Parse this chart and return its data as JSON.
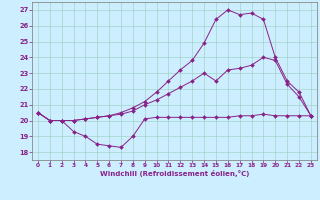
{
  "xlabel": "Windchill (Refroidissement éolien,°C)",
  "background_color": "#cceeff",
  "grid_color": "#99ccbb",
  "line_color": "#882288",
  "xlim": [
    -0.5,
    23.5
  ],
  "ylim": [
    17.5,
    27.5
  ],
  "xticks": [
    0,
    1,
    2,
    3,
    4,
    5,
    6,
    7,
    8,
    9,
    10,
    11,
    12,
    13,
    14,
    15,
    16,
    17,
    18,
    19,
    20,
    21,
    22,
    23
  ],
  "yticks": [
    18,
    19,
    20,
    21,
    22,
    23,
    24,
    25,
    26,
    27
  ],
  "line1_x": [
    0,
    1,
    2,
    3,
    4,
    5,
    6,
    7,
    8,
    9,
    10,
    11,
    12,
    13,
    14,
    15,
    16,
    17,
    18,
    19,
    20,
    21,
    22,
    23
  ],
  "line1_y": [
    20.5,
    20.0,
    20.0,
    19.3,
    19.0,
    18.5,
    18.4,
    18.3,
    19.0,
    20.1,
    20.2,
    20.2,
    20.2,
    20.2,
    20.2,
    20.2,
    20.2,
    20.3,
    20.3,
    20.4,
    20.3,
    20.3,
    20.3,
    20.3
  ],
  "line2_x": [
    0,
    1,
    2,
    3,
    4,
    5,
    6,
    7,
    8,
    9,
    10,
    11,
    12,
    13,
    14,
    15,
    16,
    17,
    18,
    19,
    20,
    21,
    22,
    23
  ],
  "line2_y": [
    20.5,
    20.0,
    20.0,
    20.0,
    20.1,
    20.2,
    20.3,
    20.4,
    20.6,
    21.0,
    21.3,
    21.7,
    22.1,
    22.5,
    23.0,
    22.5,
    23.2,
    23.3,
    23.5,
    24.0,
    23.8,
    22.3,
    21.5,
    20.3
  ],
  "line3_x": [
    0,
    1,
    2,
    3,
    4,
    5,
    6,
    7,
    8,
    9,
    10,
    11,
    12,
    13,
    14,
    15,
    16,
    17,
    18,
    19,
    20,
    21,
    22,
    23
  ],
  "line3_y": [
    20.5,
    20.0,
    20.0,
    20.0,
    20.1,
    20.2,
    20.3,
    20.5,
    20.8,
    21.2,
    21.8,
    22.5,
    23.2,
    23.8,
    24.9,
    26.4,
    27.0,
    26.7,
    26.8,
    26.4,
    24.0,
    22.5,
    21.8,
    20.3
  ]
}
